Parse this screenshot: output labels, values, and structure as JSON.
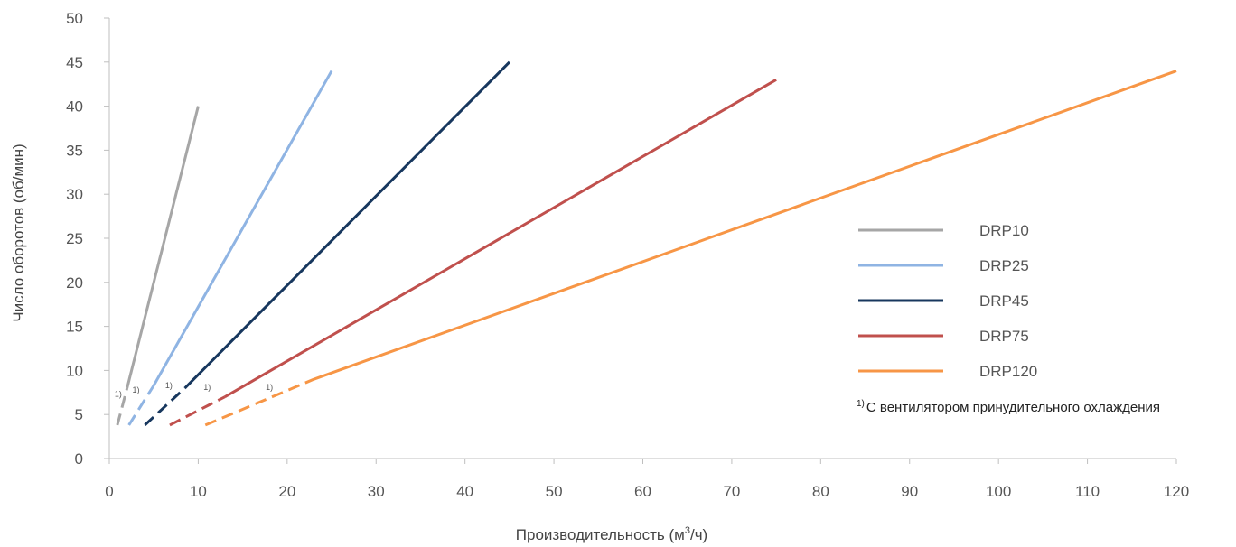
{
  "chart_data": {
    "type": "line",
    "xlabel_main": "Производительность (м",
    "xlabel_sup": "3",
    "xlabel_end": "/ч)",
    "ylabel": "Число оборотов (об/мин)",
    "xlim": [
      0,
      120
    ],
    "ylim": [
      0,
      50
    ],
    "x_ticks": [
      "0",
      "10",
      "20",
      "30",
      "40",
      "50",
      "60",
      "70",
      "80",
      "90",
      "100",
      "110",
      "120"
    ],
    "y_ticks": [
      "0",
      "5",
      "10",
      "15",
      "20",
      "25",
      "30",
      "35",
      "40",
      "45",
      "50"
    ],
    "grid": false,
    "legend_position": "right",
    "footnote_mark": "1)",
    "footnote_text": "С вентилятором принудительного охлаждения",
    "series": [
      {
        "name": "DRP10",
        "color": "#a6a6a6",
        "dashed": [
          [
            0.9,
            3.8
          ],
          [
            2.0,
            8.0
          ]
        ],
        "solid": [
          [
            2.0,
            8.0
          ],
          [
            10,
            40
          ]
        ],
        "mark": [
          1.0,
          7.0
        ]
      },
      {
        "name": "DRP25",
        "color": "#8fb4e3",
        "dashed": [
          [
            2.2,
            3.8
          ],
          [
            5.0,
            8.3
          ]
        ],
        "solid": [
          [
            5.0,
            8.3
          ],
          [
            25,
            44
          ]
        ],
        "mark": [
          3.0,
          7.5
        ]
      },
      {
        "name": "DRP45",
        "color": "#17375e",
        "dashed": [
          [
            4.0,
            3.8
          ],
          [
            8.5,
            8.0
          ]
        ],
        "solid": [
          [
            8.5,
            8.0
          ],
          [
            45,
            45
          ]
        ],
        "mark": [
          6.7,
          8.0
        ]
      },
      {
        "name": "DRP75",
        "color": "#c0504d",
        "dashed": [
          [
            6.8,
            3.8
          ],
          [
            13.0,
            7.0
          ]
        ],
        "solid": [
          [
            13.0,
            7.0
          ],
          [
            75,
            43
          ]
        ],
        "mark": [
          11.0,
          7.8
        ]
      },
      {
        "name": "DRP120",
        "color": "#f79646",
        "dashed": [
          [
            10.8,
            3.8
          ],
          [
            23.0,
            9.0
          ]
        ],
        "solid": [
          [
            23.0,
            9.0
          ],
          [
            120,
            44
          ]
        ],
        "mark": [
          18.0,
          7.8
        ]
      }
    ]
  }
}
